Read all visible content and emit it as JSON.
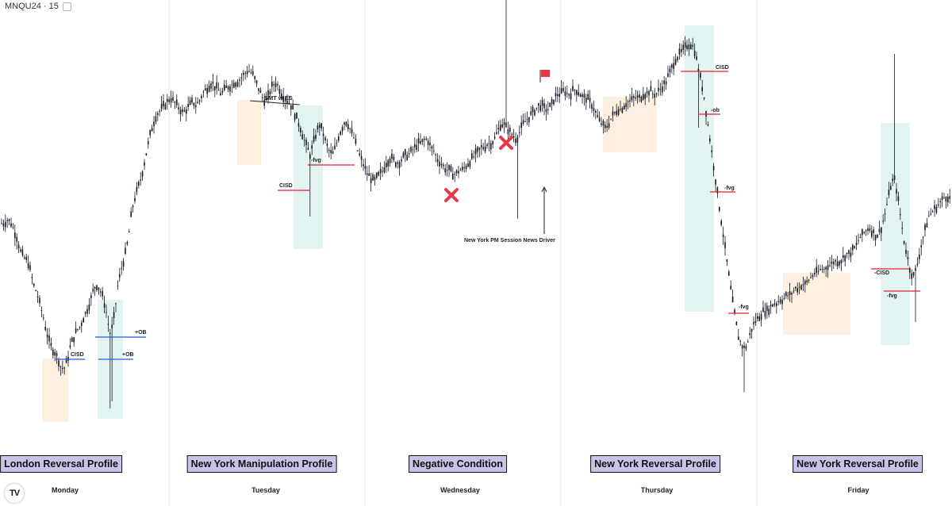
{
  "header": {
    "ticker": "MNQU24 · 15"
  },
  "footer": {
    "logo": "TV"
  },
  "days": [
    {
      "day": "Monday",
      "profile": "London Reversal Profile"
    },
    {
      "day": "Tuesday",
      "profile": "New York Manipulation Profile"
    },
    {
      "day": "Wednesday",
      "profile": "Negative Condition"
    },
    {
      "day": "Thursday",
      "profile": "New York Reversal Profile"
    },
    {
      "day": "Friday",
      "profile": "New York Reversal Profile"
    }
  ],
  "annotations": {
    "smt": "SMT w ES",
    "news": "New York PM Session News Driver",
    "level_labels": [
      "CISD",
      "+OB",
      "+OB",
      "CISD",
      "-fvg",
      "CISD",
      "-ob",
      "-fvg",
      "-fvg",
      "-CISD",
      "-fvg"
    ]
  },
  "colors": {
    "candle": "#131722",
    "separator": "#e6e7ea",
    "label_bg": "#c9c3ea",
    "orange_zone": "#fdf0e0",
    "teal_zone": "#e2f3f1",
    "red_level": "#e0202e",
    "blue_level": "#1f5fd6",
    "marker_red": "#e53945"
  },
  "chart_data": {
    "type": "candlestick",
    "title": "",
    "xlabel": "",
    "ylabel": "",
    "ylim": [
      0,
      100
    ],
    "days": [
      "Monday",
      "Tuesday",
      "Wednesday",
      "Thursday",
      "Friday"
    ],
    "price_path": [
      [
        0,
        58
      ],
      [
        5,
        58
      ],
      [
        10,
        59
      ],
      [
        14,
        58
      ],
      [
        18,
        56
      ],
      [
        22,
        54
      ],
      [
        25,
        51
      ],
      [
        30,
        49
      ],
      [
        35,
        48
      ],
      [
        39,
        45
      ],
      [
        42,
        42
      ],
      [
        46,
        40
      ],
      [
        50,
        37
      ],
      [
        54,
        34
      ],
      [
        58,
        30
      ],
      [
        62,
        27
      ],
      [
        66,
        25
      ],
      [
        70,
        24
      ],
      [
        74,
        22
      ],
      [
        77,
        20
      ],
      [
        81,
        20
      ],
      [
        85,
        22
      ],
      [
        89,
        26
      ],
      [
        93,
        28
      ],
      [
        97,
        30
      ],
      [
        101,
        31
      ],
      [
        105,
        33
      ],
      [
        109,
        35
      ],
      [
        113,
        37
      ],
      [
        117,
        40
      ],
      [
        121,
        42
      ],
      [
        125,
        41
      ],
      [
        129,
        39
      ],
      [
        133,
        36
      ],
      [
        136,
        32
      ],
      [
        139,
        29
      ],
      [
        142,
        31
      ],
      [
        145,
        35
      ],
      [
        148,
        41
      ],
      [
        151,
        44
      ],
      [
        154,
        47
      ],
      [
        157,
        49
      ],
      [
        160,
        52
      ],
      [
        163,
        56
      ],
      [
        166,
        61
      ],
      [
        169,
        64
      ],
      [
        172,
        66
      ],
      [
        175,
        68
      ],
      [
        178,
        70
      ],
      [
        181,
        73
      ],
      [
        184,
        76
      ],
      [
        187,
        79
      ],
      [
        190,
        82
      ],
      [
        193,
        84
      ],
      [
        196,
        86
      ],
      [
        199,
        87
      ],
      [
        203,
        88
      ],
      [
        207,
        89
      ],
      [
        211,
        90
      ],
      [
        215,
        91
      ],
      [
        219,
        90
      ],
      [
        223,
        89
      ],
      [
        227,
        88
      ],
      [
        231,
        87
      ],
      [
        235,
        88
      ],
      [
        239,
        89
      ],
      [
        243,
        90
      ],
      [
        247,
        89
      ],
      [
        251,
        90
      ],
      [
        255,
        92
      ],
      [
        259,
        93
      ],
      [
        263,
        94
      ],
      [
        267,
        95
      ],
      [
        271,
        94
      ],
      [
        275,
        93
      ],
      [
        279,
        92
      ],
      [
        283,
        93
      ],
      [
        287,
        94
      ],
      [
        291,
        94
      ],
      [
        295,
        95
      ],
      [
        299,
        95
      ],
      [
        303,
        96
      ],
      [
        307,
        97
      ],
      [
        311,
        98
      ],
      [
        315,
        98
      ],
      [
        319,
        97
      ],
      [
        323,
        95
      ],
      [
        327,
        93
      ],
      [
        331,
        91
      ],
      [
        335,
        90
      ],
      [
        339,
        92
      ],
      [
        343,
        94
      ],
      [
        347,
        95
      ],
      [
        351,
        94
      ],
      [
        355,
        92
      ],
      [
        359,
        91
      ],
      [
        363,
        90
      ],
      [
        367,
        89
      ],
      [
        371,
        87
      ],
      [
        375,
        85
      ],
      [
        379,
        83
      ],
      [
        383,
        80
      ],
      [
        387,
        78
      ],
      [
        391,
        76
      ],
      [
        395,
        79
      ],
      [
        399,
        82
      ],
      [
        403,
        84
      ],
      [
        407,
        82
      ],
      [
        411,
        79
      ],
      [
        415,
        77
      ],
      [
        419,
        76
      ],
      [
        423,
        78
      ],
      [
        427,
        81
      ],
      [
        431,
        83
      ],
      [
        435,
        85
      ],
      [
        439,
        84
      ],
      [
        443,
        82
      ],
      [
        447,
        80
      ],
      [
        451,
        77
      ],
      [
        455,
        75
      ],
      [
        459,
        73
      ],
      [
        463,
        71
      ],
      [
        467,
        70
      ],
      [
        471,
        69
      ],
      [
        475,
        70
      ],
      [
        479,
        71
      ],
      [
        483,
        72
      ],
      [
        487,
        74
      ],
      [
        491,
        75
      ],
      [
        495,
        75
      ],
      [
        499,
        74
      ],
      [
        503,
        74
      ],
      [
        507,
        75
      ],
      [
        511,
        76
      ],
      [
        515,
        76
      ],
      [
        519,
        77
      ],
      [
        523,
        78
      ],
      [
        527,
        79
      ],
      [
        531,
        79
      ],
      [
        535,
        80
      ],
      [
        539,
        80
      ],
      [
        543,
        78
      ],
      [
        547,
        77
      ],
      [
        551,
        75
      ],
      [
        555,
        74
      ],
      [
        559,
        73
      ],
      [
        563,
        72
      ],
      [
        567,
        72
      ],
      [
        571,
        71
      ],
      [
        575,
        71
      ],
      [
        579,
        72
      ],
      [
        583,
        72
      ],
      [
        587,
        73
      ],
      [
        591,
        74
      ],
      [
        595,
        75
      ],
      [
        599,
        76
      ],
      [
        603,
        77
      ],
      [
        607,
        78
      ],
      [
        611,
        78
      ],
      [
        615,
        79
      ],
      [
        619,
        79
      ],
      [
        623,
        80
      ],
      [
        627,
        82
      ],
      [
        631,
        84
      ],
      [
        635,
        84
      ],
      [
        639,
        83
      ],
      [
        643,
        82
      ],
      [
        647,
        81
      ],
      [
        651,
        80
      ],
      [
        655,
        82
      ],
      [
        659,
        84
      ],
      [
        663,
        85
      ],
      [
        667,
        86
      ],
      [
        671,
        87
      ],
      [
        675,
        88
      ],
      [
        679,
        89
      ],
      [
        683,
        89
      ],
      [
        687,
        88
      ],
      [
        691,
        88
      ],
      [
        695,
        89
      ],
      [
        699,
        91
      ],
      [
        703,
        92
      ],
      [
        707,
        92
      ],
      [
        711,
        93
      ],
      [
        715,
        92
      ],
      [
        719,
        92
      ],
      [
        723,
        93
      ],
      [
        727,
        93
      ],
      [
        731,
        92
      ],
      [
        735,
        91
      ],
      [
        739,
        91
      ],
      [
        743,
        90
      ],
      [
        747,
        89
      ],
      [
        751,
        87
      ],
      [
        755,
        85
      ],
      [
        759,
        84
      ],
      [
        763,
        83
      ],
      [
        767,
        84
      ],
      [
        771,
        86
      ],
      [
        775,
        87
      ],
      [
        779,
        88
      ],
      [
        783,
        88
      ],
      [
        787,
        89
      ],
      [
        791,
        90
      ],
      [
        795,
        90
      ],
      [
        799,
        91
      ],
      [
        803,
        91
      ],
      [
        807,
        91
      ],
      [
        811,
        92
      ],
      [
        815,
        92
      ],
      [
        819,
        93
      ],
      [
        823,
        92
      ],
      [
        827,
        92
      ],
      [
        831,
        93
      ],
      [
        835,
        94
      ],
      [
        839,
        95
      ],
      [
        843,
        97
      ],
      [
        847,
        99
      ],
      [
        851,
        101
      ],
      [
        855,
        102
      ],
      [
        859,
        103
      ],
      [
        863,
        104
      ],
      [
        867,
        105
      ],
      [
        871,
        105
      ],
      [
        875,
        104
      ],
      [
        879,
        100
      ],
      [
        883,
        96
      ],
      [
        887,
        92
      ],
      [
        891,
        86
      ],
      [
        895,
        80
      ],
      [
        899,
        74
      ],
      [
        903,
        68
      ],
      [
        907,
        62
      ],
      [
        911,
        56
      ],
      [
        915,
        50
      ],
      [
        919,
        44
      ],
      [
        923,
        38
      ],
      [
        927,
        33
      ],
      [
        931,
        28
      ],
      [
        935,
        26
      ],
      [
        939,
        25
      ],
      [
        943,
        27
      ],
      [
        947,
        30
      ],
      [
        951,
        32
      ],
      [
        955,
        33
      ],
      [
        959,
        34
      ],
      [
        963,
        35
      ],
      [
        967,
        35
      ],
      [
        971,
        36
      ],
      [
        975,
        37
      ],
      [
        979,
        37
      ],
      [
        983,
        38
      ],
      [
        987,
        38
      ],
      [
        991,
        39
      ],
      [
        995,
        39
      ],
      [
        999,
        40
      ],
      [
        1003,
        41
      ],
      [
        1007,
        41
      ],
      [
        1011,
        42
      ],
      [
        1015,
        42
      ],
      [
        1019,
        43
      ],
      [
        1023,
        44
      ],
      [
        1027,
        45
      ],
      [
        1031,
        45
      ],
      [
        1035,
        46
      ],
      [
        1039,
        46
      ],
      [
        1043,
        47
      ],
      [
        1047,
        47
      ],
      [
        1051,
        48
      ],
      [
        1055,
        48
      ],
      [
        1059,
        48
      ],
      [
        1063,
        49
      ],
      [
        1067,
        50
      ],
      [
        1071,
        50
      ],
      [
        1075,
        51
      ],
      [
        1079,
        52
      ],
      [
        1083,
        54
      ],
      [
        1087,
        55
      ],
      [
        1091,
        56
      ],
      [
        1095,
        57
      ],
      [
        1099,
        56
      ],
      [
        1103,
        55
      ],
      [
        1107,
        55
      ],
      [
        1111,
        57
      ],
      [
        1115,
        60
      ],
      [
        1119,
        64
      ],
      [
        1123,
        68
      ],
      [
        1127,
        70
      ],
      [
        1131,
        66
      ],
      [
        1135,
        60
      ],
      [
        1139,
        54
      ],
      [
        1143,
        50
      ],
      [
        1147,
        46
      ],
      [
        1151,
        44
      ],
      [
        1155,
        46
      ],
      [
        1159,
        50
      ],
      [
        1163,
        54
      ],
      [
        1167,
        57
      ],
      [
        1171,
        60
      ],
      [
        1175,
        61
      ],
      [
        1179,
        62
      ],
      [
        1183,
        63
      ],
      [
        1187,
        64
      ],
      [
        1191,
        65
      ],
      [
        1195,
        65
      ],
      [
        1199,
        64
      ]
    ]
  }
}
